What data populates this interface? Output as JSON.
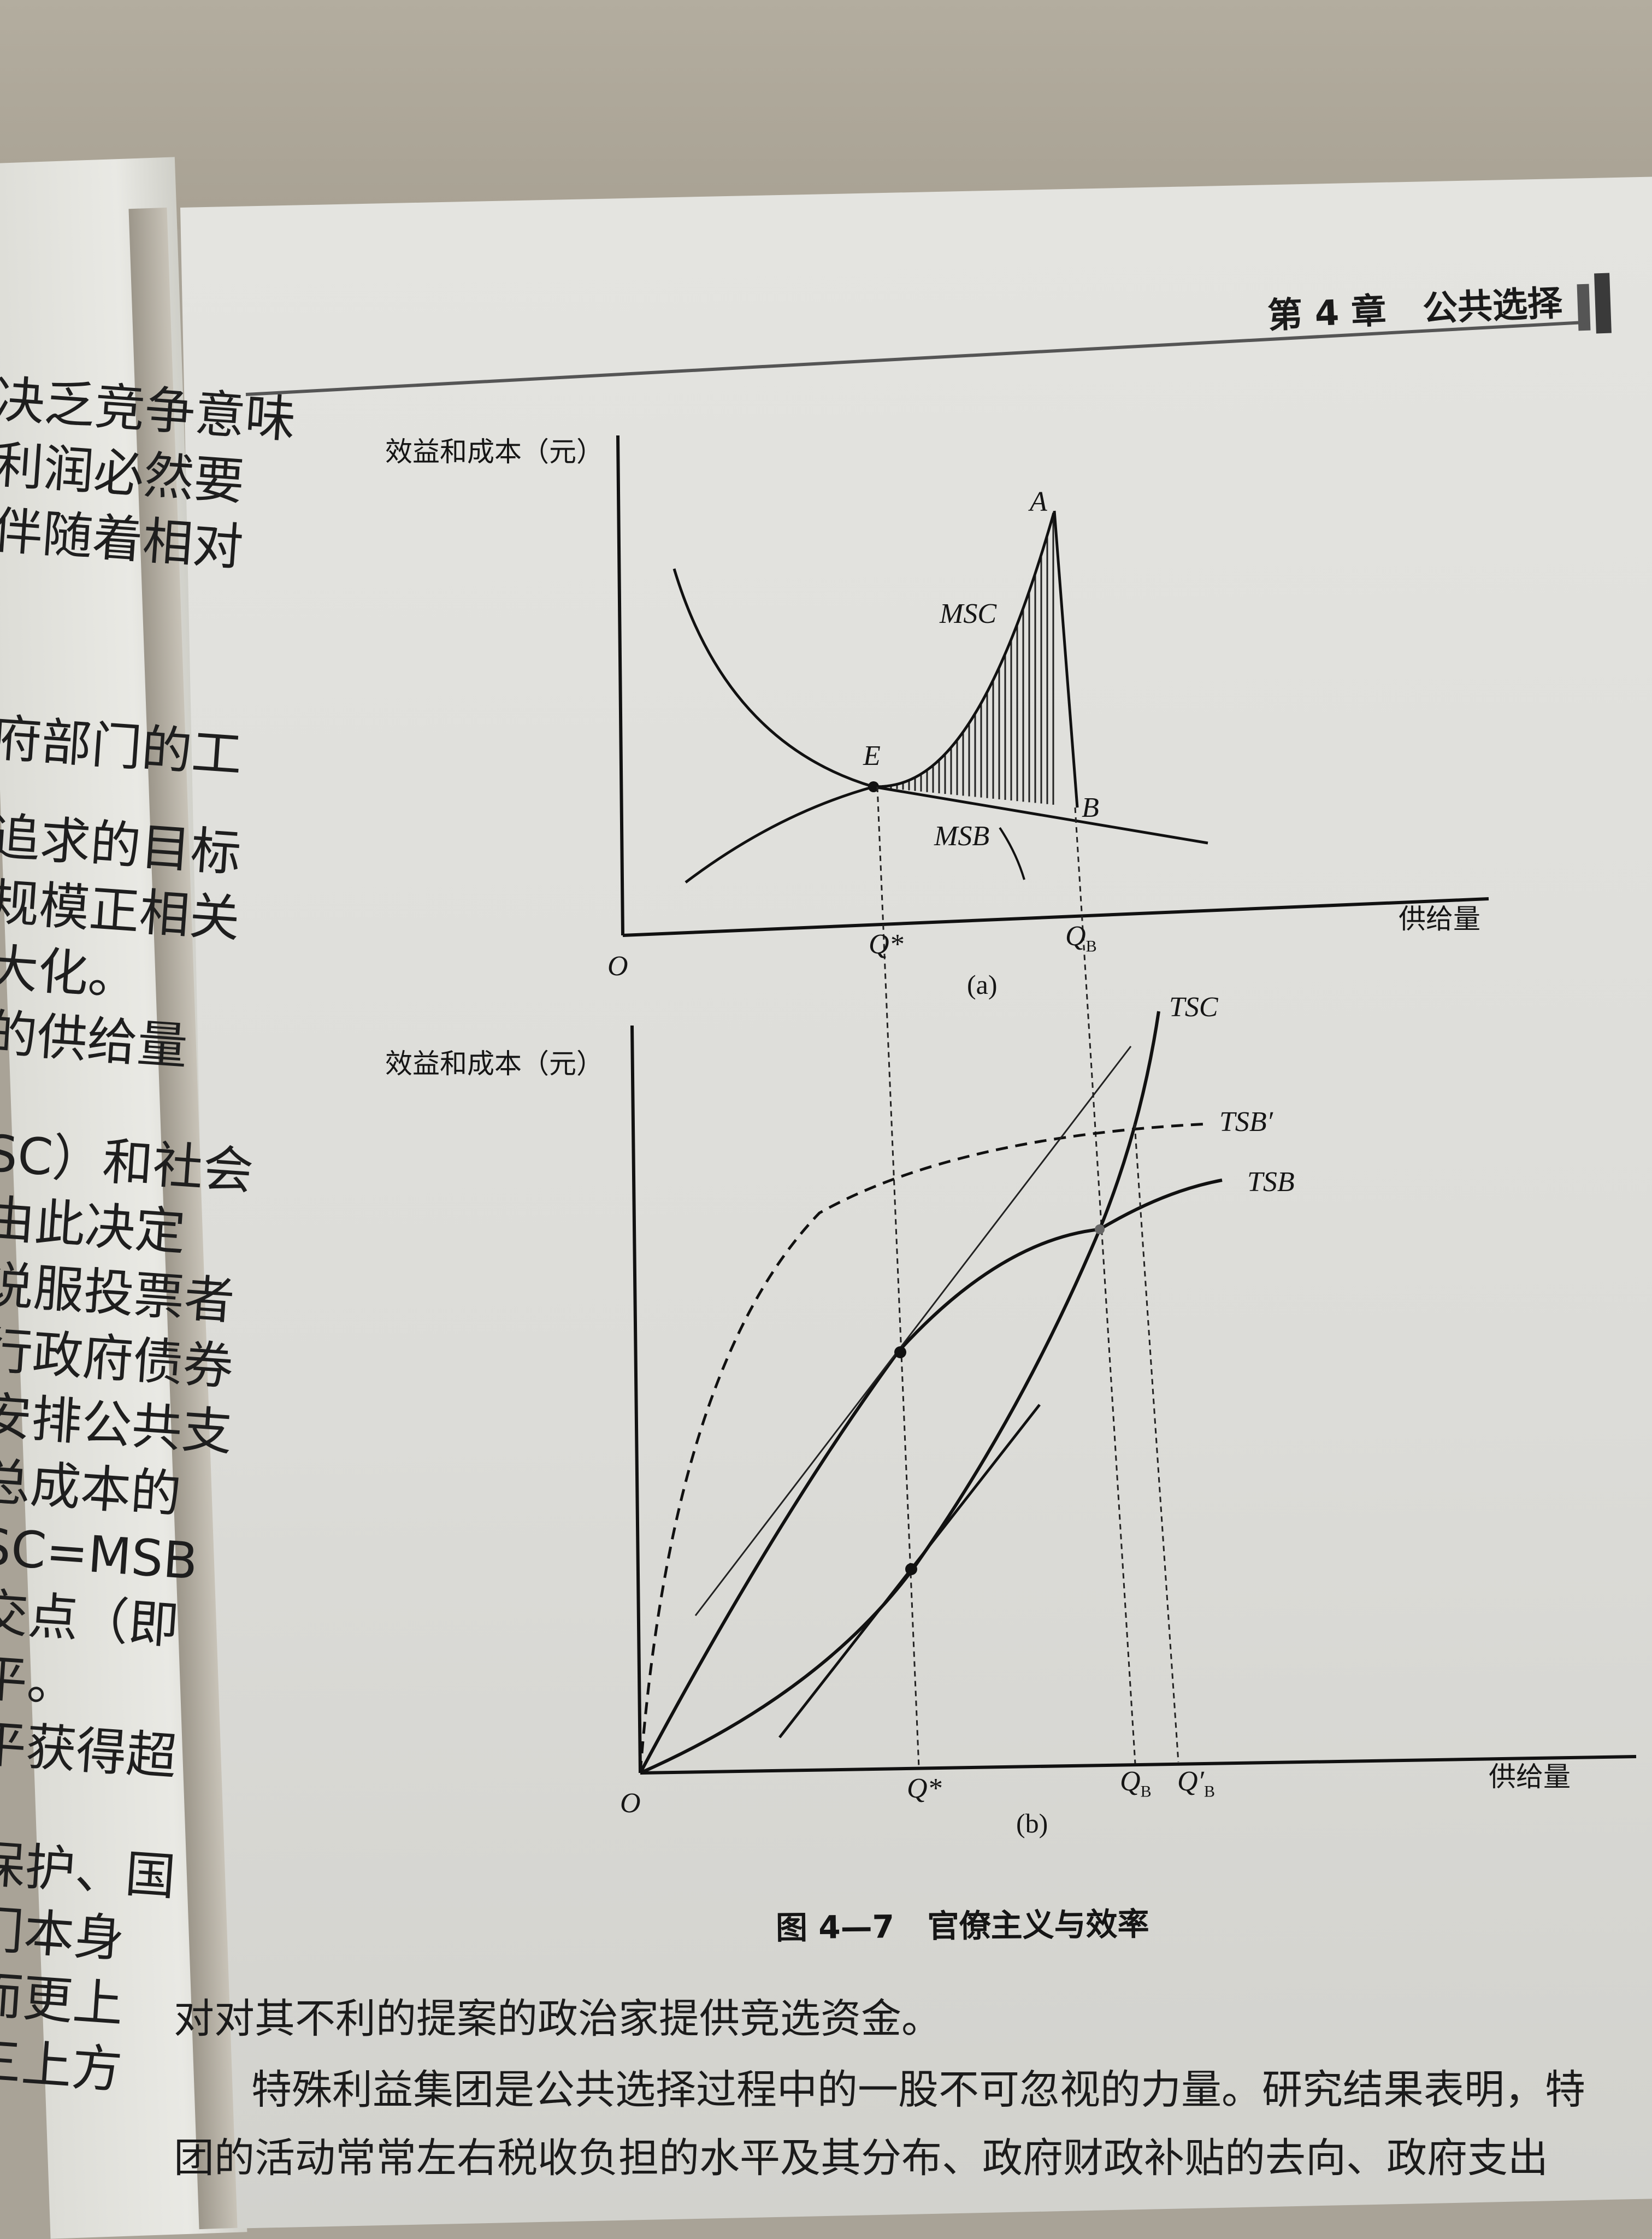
{
  "left_page": {
    "lines": [
      "决乏竞争意味",
      "利润必然要",
      "伴随着相对",
      "府部门的工",
      "追求的目标",
      "规模正相关",
      "大化。",
      "的供给量",
      "SC）和社会",
      "由此决定",
      "说服投票者",
      "行政府债券",
      "安排公共支",
      "总成本的",
      "SC=MSB",
      "交点（即",
      "平。",
      "平获得超",
      "保护、国",
      "门本身",
      "而更上",
      "三上方"
    ]
  },
  "header": {
    "chapter": "第 4 章",
    "title": "公共选择"
  },
  "figure_a": {
    "y_axis_label": "效益和成本（元）",
    "x_axis_label": "供给量",
    "origin": "O",
    "points": {
      "A": "A",
      "E": "E",
      "B": "B"
    },
    "curves": {
      "msc": "MSC",
      "msb": "MSB"
    },
    "ticks": {
      "q_star": "Q*",
      "q_b": "Q",
      "q_b_sub": "B"
    },
    "panel": "(a)"
  },
  "figure_b": {
    "y_axis_label": "效益和成本（元）",
    "x_axis_label": "供给量",
    "origin": "O",
    "curves": {
      "tsc": "TSC",
      "tsb_prime": "TSB′",
      "tsb": "TSB"
    },
    "ticks": {
      "q_star": "Q*",
      "q_b": "Q",
      "q_b_sub": "B",
      "q_b_prime": "Q′",
      "q_b_prime_sub": "B"
    },
    "panel": "(b)"
  },
  "caption": {
    "number": "图 4—7",
    "title": "官僚主义与效率"
  },
  "body": {
    "lines": [
      "对对其不利的提案的政治家提供竞选资金。",
      "特殊利益集团是公共选择过程中的一股不可忽视的力量。研究结果表明，特",
      "团的活动常常左右税收负担的水平及其分布、政府财政补贴的去向、政府支出"
    ]
  }
}
